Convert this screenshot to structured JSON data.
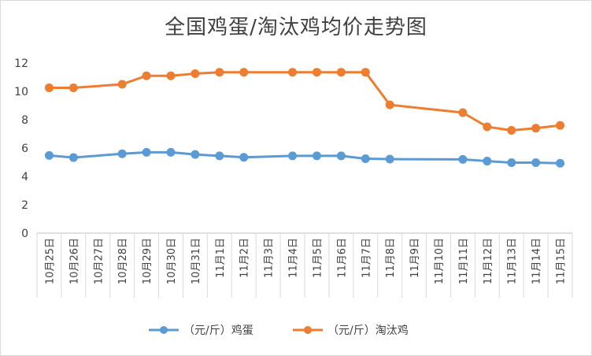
{
  "chart_data": {
    "type": "line",
    "title": "全国鸡蛋/淘汰鸡均价走势图",
    "categories": [
      "10月25日",
      "10月26日",
      "10月27日",
      "10月28日",
      "10月29日",
      "10月30日",
      "10月31日",
      "11月1日",
      "11月2日",
      "11月3日",
      "11月4日",
      "11月5日",
      "11月6日",
      "11月7日",
      "11月8日",
      "11月9日",
      "11月10日",
      "11月11日",
      "11月12日",
      "11月13日",
      "11月14日",
      "11月15日"
    ],
    "series": [
      {
        "name": "（元/斤）鸡蛋",
        "color": "#5b9bd5",
        "values": [
          5.48,
          5.33,
          null,
          5.6,
          5.7,
          5.7,
          5.55,
          5.45,
          5.35,
          null,
          5.45,
          5.45,
          5.45,
          5.25,
          5.22,
          null,
          null,
          5.2,
          5.08,
          4.97,
          4.97,
          4.93
        ]
      },
      {
        "name": "（元/斤）淘汰鸡",
        "color": "#ed7d31",
        "values": [
          10.25,
          10.25,
          null,
          10.5,
          11.1,
          11.1,
          11.25,
          11.35,
          11.35,
          null,
          11.35,
          11.35,
          11.35,
          11.35,
          9.05,
          null,
          null,
          8.5,
          7.5,
          7.25,
          7.4,
          7.6
        ]
      }
    ],
    "ylim": [
      0,
      12
    ],
    "yticks": [
      0,
      2,
      4,
      6,
      8,
      10,
      12
    ],
    "grid": false,
    "legend": "bottom"
  }
}
